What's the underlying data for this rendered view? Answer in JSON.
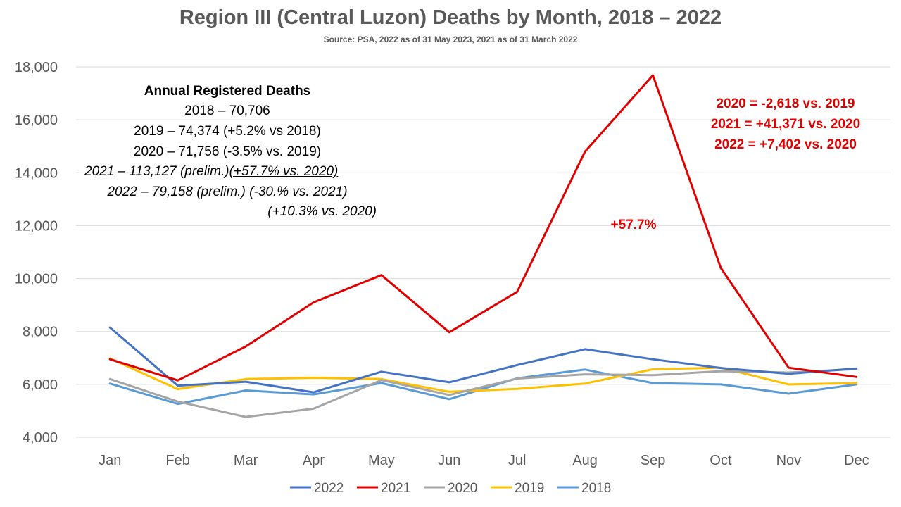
{
  "chart_data": {
    "type": "line",
    "title": "Region III (Central Luzon) Deaths by Month, 2018 – 2022",
    "subtitle": "Source: PSA, 2022 as of 31 May 2023, 2021 as of 31 March 2022",
    "categories": [
      "Jan",
      "Feb",
      "Mar",
      "Apr",
      "May",
      "Jun",
      "Jul",
      "Aug",
      "Sep",
      "Oct",
      "Nov",
      "Dec"
    ],
    "ylim": [
      4000,
      18000
    ],
    "yticks": [
      4000,
      6000,
      8000,
      10000,
      12000,
      14000,
      16000,
      18000
    ],
    "ytick_labels": [
      "4,000",
      "6,000",
      "8,000",
      "10,000",
      "12,000",
      "14,000",
      "16,000",
      "18,000"
    ],
    "grid": true,
    "legend_position": "bottom",
    "series": [
      {
        "name": "2022",
        "color": "#4472c4",
        "values": [
          8150,
          5950,
          6100,
          5700,
          6480,
          6080,
          6730,
          7330,
          6950,
          6620,
          6400,
          6600
        ]
      },
      {
        "name": "2021",
        "color": "#e00000",
        "values": [
          6950,
          6150,
          7430,
          9100,
          10130,
          7970,
          9500,
          14800,
          17680,
          10400,
          6630,
          6280
        ]
      },
      {
        "name": "2020",
        "color": "#a5a5a5",
        "values": [
          6200,
          5350,
          4770,
          5080,
          6160,
          5600,
          6220,
          6380,
          6350,
          6500,
          6450,
          6580
        ]
      },
      {
        "name": "2019",
        "color": "#ffc000",
        "values": [
          6980,
          5820,
          6200,
          6250,
          6200,
          5720,
          5830,
          6030,
          6570,
          6630,
          6000,
          6050
        ]
      },
      {
        "name": "2018",
        "color": "#5b9bd5",
        "values": [
          6030,
          5260,
          5770,
          5620,
          6050,
          5440,
          6230,
          6560,
          6050,
          6000,
          5650,
          6000
        ]
      }
    ],
    "annotations": {
      "left_box": {
        "heading": "Annual Registered Deaths",
        "line_2018": "2018 – 70,706",
        "line_2019": "2019 – 74,374 (+5.2% vs 2018)",
        "line_2020": "2020 – 71,756 (-3.5% vs. 2019)",
        "line_2021_a": "2021 – 113,127 (prelim.)",
        "line_2021_b": "(+57.7% vs. 2020)",
        "line_2022": "2022 – 79,158 (prelim.) (-30.% vs. 2021)",
        "line_2022_b": "(+10.3% vs. 2020)"
      },
      "right_box": {
        "line_1": "2020 = -2,618 vs. 2019",
        "line_2": "2021 = +41,371 vs. 2020",
        "line_3": "2022 = +7,402 vs. 2020"
      },
      "peak_label": "+57.7%"
    }
  }
}
